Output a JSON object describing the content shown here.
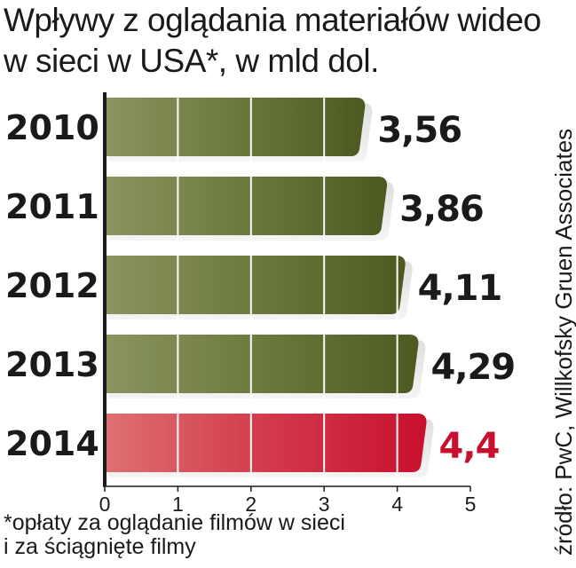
{
  "chart_data": {
    "type": "bar",
    "orientation": "horizontal",
    "title_lines": [
      "Wpływy z oglądania materiałów wideo",
      "w sieci w USA*, w mld dol."
    ],
    "categories": [
      "2010",
      "2011",
      "2012",
      "2013",
      "2014"
    ],
    "values": [
      3.56,
      3.86,
      4.11,
      4.29,
      4.4
    ],
    "value_labels": [
      "3,56",
      "3,86",
      "4,11",
      "4,29",
      "4,4"
    ],
    "highlight_index": 4,
    "xlim": [
      0,
      5
    ],
    "x_ticks": [
      "0",
      "1",
      "2",
      "3",
      "4",
      "5"
    ],
    "grid": true,
    "footnote_lines": [
      "*opłaty za oglądanie filmów w sieci",
      "i za ściągnięte filmy"
    ],
    "source": "źródło: PwC, Willkofsky Gruen Associates"
  },
  "colors": {
    "bar_default": "#5a6a2e",
    "bar_highlight": "#cc1a3a",
    "label_default": "#1a1a1a",
    "label_highlight": "#c8102e",
    "axis": "#1a1a1a",
    "gridline": "#ffffff"
  }
}
